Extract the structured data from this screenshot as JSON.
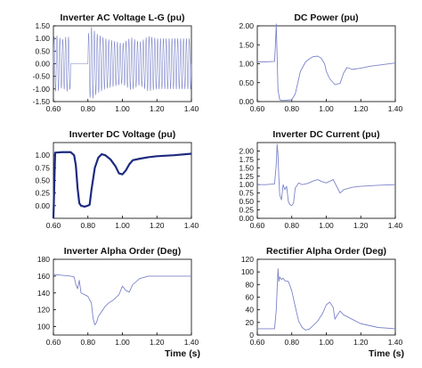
{
  "chart_data": [
    {
      "type": "line",
      "title": "Inverter AC Voltage L-G (pu)",
      "xlabel": "",
      "ylabel": "",
      "xlim": [
        0.6,
        1.4
      ],
      "ylim": [
        -1.5,
        1.5
      ],
      "xticks": [
        "0.60",
        "0.80",
        "1.00",
        "1.20",
        "1.40"
      ],
      "yticks": [
        "-1.50",
        "-1.00",
        "-0.50",
        "0.00",
        "0.50",
        "1.00",
        "1.50"
      ],
      "color": "#7b84c9",
      "style": "oscillating",
      "envelope": {
        "x": [
          0.6,
          0.62,
          0.65,
          0.68,
          0.7,
          0.7,
          0.8,
          0.8,
          0.82,
          0.85,
          0.9,
          0.95,
          1.0,
          1.05,
          1.1,
          1.15,
          1.2,
          1.3,
          1.4
        ],
        "amplitude": [
          1.05,
          1.12,
          0.95,
          1.1,
          1.0,
          0.0,
          0.0,
          1.15,
          1.45,
          1.2,
          1.0,
          0.9,
          0.8,
          1.05,
          0.85,
          1.1,
          1.0,
          1.0,
          1.0
        ]
      },
      "cycles_per_unit": 60
    },
    {
      "type": "line",
      "title": "DC Power (pu)",
      "xlabel": "",
      "ylabel": "",
      "xlim": [
        0.6,
        1.4
      ],
      "ylim": [
        0.0,
        2.0
      ],
      "xticks": [
        "0.60",
        "0.80",
        "1.00",
        "1.20",
        "1.40"
      ],
      "yticks": [
        "0.00",
        "0.50",
        "1.00",
        "1.50",
        "2.00"
      ],
      "color": "#7b84c9",
      "style": "line",
      "x": [
        0.6,
        0.65,
        0.7,
        0.705,
        0.71,
        0.715,
        0.72,
        0.73,
        0.74,
        0.76,
        0.8,
        0.82,
        0.85,
        0.88,
        0.9,
        0.92,
        0.95,
        0.97,
        0.99,
        1.0,
        1.02,
        1.05,
        1.08,
        1.1,
        1.12,
        1.15,
        1.2,
        1.25,
        1.3,
        1.35,
        1.4
      ],
      "y": [
        1.05,
        1.05,
        1.06,
        1.5,
        2.05,
        1.2,
        0.3,
        0.05,
        0.03,
        0.03,
        0.05,
        0.2,
        0.8,
        1.05,
        1.12,
        1.18,
        1.2,
        1.15,
        1.0,
        0.8,
        0.6,
        0.45,
        0.48,
        0.75,
        0.9,
        0.85,
        0.88,
        0.93,
        0.96,
        0.99,
        1.02
      ]
    },
    {
      "type": "line",
      "title": "Inverter DC Voltage (pu)",
      "xlabel": "",
      "ylabel": "",
      "xlim": [
        0.6,
        1.4
      ],
      "ylim": [
        -0.25,
        1.25
      ],
      "xticks": [
        "0.60",
        "0.80",
        "1.00",
        "1.20",
        "1.40"
      ],
      "yticks": [
        "0.00",
        "0.25",
        "0.50",
        "0.75",
        "1.00"
      ],
      "color": "#1e2a80",
      "style": "bold-line",
      "x": [
        0.6,
        0.61,
        0.65,
        0.7,
        0.72,
        0.73,
        0.74,
        0.75,
        0.76,
        0.78,
        0.8,
        0.81,
        0.82,
        0.84,
        0.86,
        0.88,
        0.9,
        0.93,
        0.96,
        0.98,
        1.0,
        1.02,
        1.04,
        1.06,
        1.1,
        1.15,
        1.2,
        1.3,
        1.4
      ],
      "y": [
        -0.25,
        1.05,
        1.06,
        1.06,
        1.0,
        0.8,
        0.35,
        0.05,
        0.0,
        -0.02,
        0.0,
        0.02,
        0.3,
        0.75,
        0.95,
        1.02,
        1.0,
        0.92,
        0.78,
        0.64,
        0.62,
        0.7,
        0.82,
        0.9,
        0.93,
        0.96,
        0.98,
        1.0,
        1.03
      ]
    },
    {
      "type": "line",
      "title": "Inverter DC Current (pu)",
      "xlabel": "",
      "ylabel": "",
      "xlim": [
        0.6,
        1.4
      ],
      "ylim": [
        0.0,
        2.25
      ],
      "xticks": [
        "0.60",
        "0.80",
        "1.00",
        "1.20",
        "1.40"
      ],
      "yticks": [
        "0.00",
        "0.25",
        "0.50",
        "0.75",
        "1.00",
        "1.25",
        "1.50",
        "1.75",
        "2.00"
      ],
      "color": "#7b84c9",
      "style": "line",
      "x": [
        0.6,
        0.65,
        0.7,
        0.71,
        0.715,
        0.72,
        0.725,
        0.73,
        0.74,
        0.75,
        0.76,
        0.77,
        0.78,
        0.79,
        0.8,
        0.81,
        0.82,
        0.84,
        0.86,
        0.88,
        0.9,
        0.92,
        0.95,
        0.97,
        1.0,
        1.02,
        1.04,
        1.06,
        1.08,
        1.1,
        1.15,
        1.2,
        1.3,
        1.4
      ],
      "y": [
        1.0,
        1.0,
        1.02,
        1.6,
        2.2,
        1.9,
        1.2,
        0.7,
        0.55,
        1.0,
        0.85,
        0.95,
        0.5,
        0.4,
        0.38,
        0.45,
        0.9,
        1.05,
        1.0,
        1.02,
        1.05,
        1.1,
        1.15,
        1.1,
        1.05,
        1.1,
        1.15,
        0.95,
        0.75,
        0.85,
        0.92,
        0.95,
        0.98,
        1.0
      ]
    },
    {
      "type": "line",
      "title": "Inverter Alpha Order (Deg)",
      "xlabel": "Time (s)",
      "ylabel": "",
      "xlim": [
        0.6,
        1.4
      ],
      "ylim": [
        90,
        180
      ],
      "xticks": [
        "0.60",
        "0.80",
        "1.00",
        "1.20",
        "1.40"
      ],
      "yticks": [
        "100",
        "120",
        "140",
        "160",
        "180"
      ],
      "color": "#7b84c9",
      "style": "line",
      "x": [
        0.6,
        0.65,
        0.7,
        0.72,
        0.73,
        0.74,
        0.75,
        0.76,
        0.78,
        0.8,
        0.82,
        0.83,
        0.84,
        0.85,
        0.86,
        0.88,
        0.9,
        0.92,
        0.95,
        0.98,
        1.0,
        1.02,
        1.04,
        1.06,
        1.1,
        1.15,
        1.2,
        1.3,
        1.4
      ],
      "y": [
        162,
        161,
        160,
        159,
        150,
        145,
        155,
        140,
        138,
        136,
        128,
        110,
        102,
        105,
        112,
        118,
        124,
        128,
        132,
        138,
        148,
        143,
        141,
        150,
        157,
        160,
        160,
        160,
        160
      ]
    },
    {
      "type": "line",
      "title": "Rectifier Alpha Order (Deg)",
      "xlabel": "Time (s)",
      "ylabel": "",
      "xlim": [
        0.6,
        1.4
      ],
      "ylim": [
        0,
        120
      ],
      "xticks": [
        "0.60",
        "0.80",
        "1.00",
        "1.20",
        "1.40"
      ],
      "yticks": [
        "0",
        "20",
        "40",
        "60",
        "80",
        "100",
        "120"
      ],
      "color": "#7b84c9",
      "style": "line",
      "x": [
        0.6,
        0.65,
        0.7,
        0.71,
        0.72,
        0.725,
        0.73,
        0.74,
        0.75,
        0.76,
        0.78,
        0.8,
        0.82,
        0.84,
        0.86,
        0.88,
        0.9,
        0.92,
        0.95,
        0.98,
        1.0,
        1.02,
        1.04,
        1.05,
        1.06,
        1.08,
        1.1,
        1.15,
        1.2,
        1.3,
        1.4
      ],
      "y": [
        10,
        10,
        10,
        40,
        105,
        85,
        92,
        88,
        90,
        86,
        85,
        70,
        45,
        22,
        12,
        8,
        9,
        14,
        22,
        35,
        48,
        52,
        44,
        25,
        30,
        38,
        32,
        25,
        18,
        12,
        10
      ]
    }
  ]
}
